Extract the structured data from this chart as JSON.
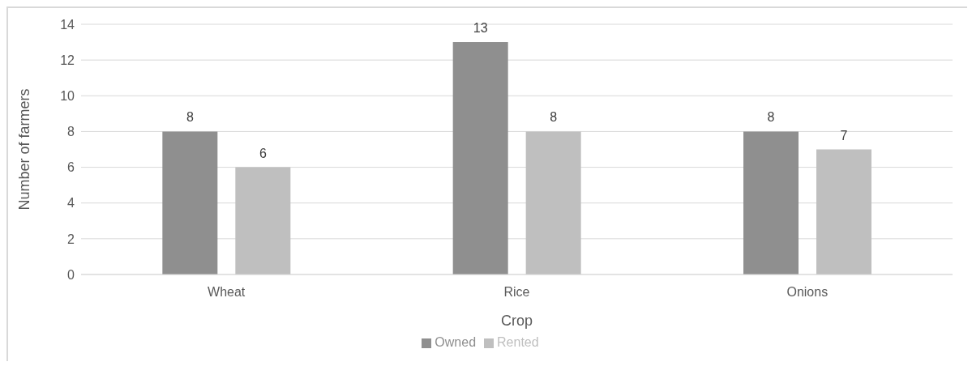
{
  "chart_data": {
    "type": "bar",
    "xlabel": "Crop",
    "ylabel": "Number of farmers",
    "categories": [
      "Wheat",
      "Rice",
      "Onions"
    ],
    "series": [
      {
        "name": "Owned",
        "color": "#8f8f8f",
        "values": [
          8,
          13,
          8
        ]
      },
      {
        "name": "Rented",
        "color": "#bfbfbf",
        "values": [
          6,
          8,
          7
        ]
      }
    ],
    "ylim": [
      0,
      14
    ],
    "yticks": [
      0,
      2,
      4,
      6,
      8,
      10,
      12,
      14
    ],
    "grid": "y",
    "legend": "bottom",
    "data_labels": true
  }
}
